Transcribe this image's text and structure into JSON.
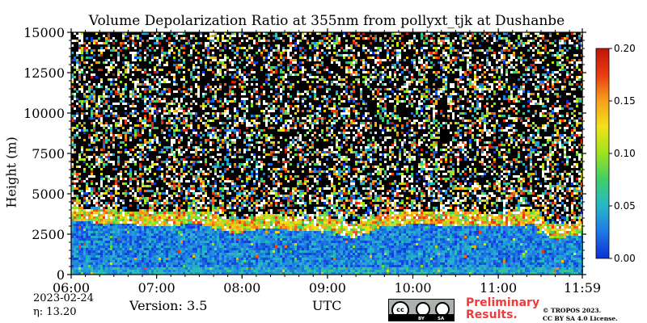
{
  "chart_data": {
    "type": "heatmap",
    "title": "Volume Depolarization Ratio at 355nm from pollyxt_tjk at Dushanbe",
    "xlabel": "UTC",
    "ylabel": "Height (m)",
    "x_range_hours": [
      6.0,
      11.9833
    ],
    "y_range_m": [
      0,
      15000
    ],
    "x_ticks": [
      {
        "value": 6,
        "label": "06:00"
      },
      {
        "value": 7,
        "label": "07:00"
      },
      {
        "value": 8,
        "label": "08:00"
      },
      {
        "value": 9,
        "label": "09:00"
      },
      {
        "value": 10,
        "label": "10:00"
      },
      {
        "value": 11,
        "label": "11:00"
      },
      {
        "value": 11.9833,
        "label": "11:59"
      }
    ],
    "y_ticks": [
      {
        "value": 0,
        "label": "0"
      },
      {
        "value": 2500,
        "label": "2500"
      },
      {
        "value": 5000,
        "label": "5000"
      },
      {
        "value": 7500,
        "label": "7500"
      },
      {
        "value": 10000,
        "label": "10000"
      },
      {
        "value": 12500,
        "label": "12500"
      },
      {
        "value": 15000,
        "label": "15000"
      }
    ],
    "colorbar": {
      "range": [
        0.0,
        0.2
      ],
      "ticks": [
        {
          "value": 0.0,
          "label": "0.00"
        },
        {
          "value": 0.05,
          "label": "0.05"
        },
        {
          "value": 0.1,
          "label": "0.10"
        },
        {
          "value": 0.15,
          "label": "0.15"
        },
        {
          "value": 0.2,
          "label": "0.20"
        }
      ],
      "colors": [
        "#0a2fd6",
        "#1e78e6",
        "#27b7c8",
        "#3fcf6a",
        "#9be31e",
        "#f2e21a",
        "#f7a11a",
        "#e93b12",
        "#c0150c"
      ]
    },
    "aerosol_layer_top_m": [
      {
        "hour": 6.0,
        "height": 4100
      },
      {
        "hour": 6.5,
        "height": 3900
      },
      {
        "hour": 7.0,
        "height": 3800
      },
      {
        "hour": 7.5,
        "height": 3900
      },
      {
        "hour": 7.9,
        "height": 3300
      },
      {
        "hour": 8.3,
        "height": 3700
      },
      {
        "hour": 8.7,
        "height": 3400
      },
      {
        "hour": 9.0,
        "height": 3500
      },
      {
        "hour": 9.3,
        "height": 3000
      },
      {
        "hour": 9.6,
        "height": 3700
      },
      {
        "hour": 10.0,
        "height": 3900
      },
      {
        "hour": 10.5,
        "height": 3800
      },
      {
        "hour": 11.0,
        "height": 3700
      },
      {
        "hour": 11.4,
        "height": 3900
      },
      {
        "hour": 11.6,
        "height": 3000
      },
      {
        "hour": 11.98,
        "height": 3200
      }
    ]
  },
  "annotations": {
    "date": "2023-02-24",
    "eta": "η:  13.20",
    "version": "Version: 3.5",
    "preliminary": "Preliminary Results.",
    "copyright_line1": "© TROPOS 2023.",
    "copyright_line2": "CC BY SA 4.0 License.",
    "license_badge": {
      "cc": "cc",
      "by": "BY",
      "sa": "SA"
    }
  }
}
